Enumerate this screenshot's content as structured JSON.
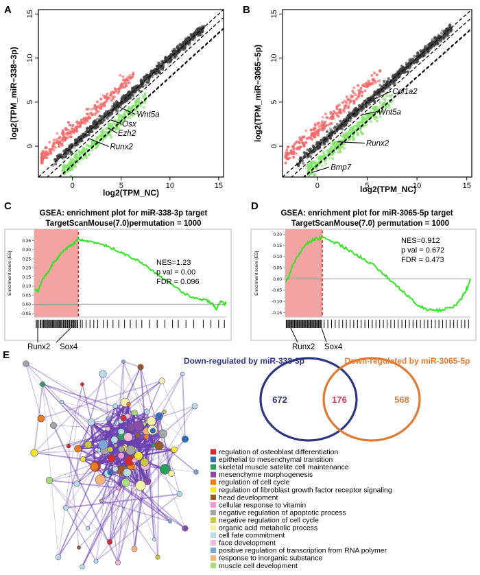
{
  "panel_labels": [
    "A",
    "B",
    "C",
    "D",
    "E"
  ],
  "chart_data": [
    {
      "type": "scatter",
      "panel": "A",
      "xlabel": "log2(TPM_NC)",
      "ylabel": "log2(TPM_miR−338−3p)",
      "xlim": [
        -3.5,
        15.5
      ],
      "ylim": [
        -3.5,
        15.5
      ],
      "xticks": [
        0,
        5,
        10,
        15
      ],
      "yticks": [
        0,
        5,
        10,
        15
      ],
      "diagonals": [
        [
          0,
          1
        ],
        [
          -0.9,
          0.9
        ]
      ],
      "point_groups": [
        {
          "name": "up",
          "color": "#f06a6a",
          "region": "above",
          "count": 260
        },
        {
          "name": "down",
          "color": "#82e66a",
          "region": "below",
          "count": 280
        },
        {
          "name": "unchanged",
          "color": "#3a3a3a",
          "region": "band",
          "count": 750
        }
      ],
      "annotations": [
        {
          "label": "Wnt5a",
          "point": [
            4.9,
            4.4
          ]
        },
        {
          "label": "Osx",
          "point": [
            3.9,
            3.0
          ]
        },
        {
          "label": "Ezh2",
          "point": [
            3.6,
            2.1
          ]
        },
        {
          "label": "Runx2",
          "point": [
            1.6,
            0.9
          ]
        }
      ]
    },
    {
      "type": "scatter",
      "panel": "B",
      "xlabel": "log2(TPM_NC)",
      "ylabel": "log2(TPM_miR−3065−5p)",
      "xlim": [
        -3.5,
        15.5
      ],
      "ylim": [
        -3.5,
        15.5
      ],
      "xticks": [
        0,
        5,
        10,
        15
      ],
      "yticks": [
        0,
        5,
        10,
        15
      ],
      "diagonals": [
        [
          0,
          1
        ],
        [
          -0.9,
          0.9
        ]
      ],
      "point_groups": [
        {
          "name": "up",
          "color": "#f06a6a",
          "region": "above",
          "count": 240
        },
        {
          "name": "down",
          "color": "#82e66a",
          "region": "below",
          "count": 300
        },
        {
          "name": "unchanged",
          "color": "#3a3a3a",
          "region": "band",
          "count": 750
        }
      ],
      "annotations": [
        {
          "label": "Col1a2",
          "point": [
            5.6,
            5.3
          ]
        },
        {
          "label": "Wnt5a",
          "point": [
            4.6,
            3.6
          ]
        },
        {
          "label": "Runx2",
          "point": [
            2.0,
            0.5
          ]
        },
        {
          "label": "Bmp7",
          "point": [
            -0.6,
            -3.0
          ]
        }
      ]
    },
    {
      "type": "line",
      "panel": "C",
      "title_lines": [
        "GSEA: enrichment plot for miR-338-3p target",
        "TargetScanMouse(7.0)permutation = 1000"
      ],
      "ylabel": "Enrichment score (ES)",
      "ylim": [
        -0.07,
        0.39
      ],
      "yticks": [
        "0.35",
        "0.30",
        "0.25",
        "0.20",
        "0.15",
        "0.10",
        "0.05",
        "0.00",
        "-0.05"
      ],
      "ytick_values": [
        0.35,
        0.3,
        0.25,
        0.2,
        0.15,
        0.1,
        0.05,
        0.0,
        -0.05
      ],
      "peak_fraction": 0.23,
      "stats": [
        "NES=1.23",
        "p val = 0.00",
        "FDR = 0.096"
      ],
      "series": [
        {
          "name": "running ES",
          "color": "#2ee61f",
          "x": [
            0,
            0.02,
            0.04,
            0.06,
            0.08,
            0.1,
            0.12,
            0.14,
            0.16,
            0.18,
            0.2,
            0.22,
            0.23,
            0.26,
            0.3,
            0.34,
            0.38,
            0.42,
            0.46,
            0.5,
            0.54,
            0.58,
            0.62,
            0.66,
            0.7,
            0.74,
            0.78,
            0.82,
            0.86,
            0.9,
            0.93,
            0.95,
            0.97,
            0.99,
            1.0
          ],
          "values": [
            0.08,
            0.07,
            0.13,
            0.16,
            0.19,
            0.23,
            0.25,
            0.28,
            0.3,
            0.32,
            0.33,
            0.35,
            0.36,
            0.35,
            0.34,
            0.33,
            0.32,
            0.3,
            0.28,
            0.26,
            0.24,
            0.21,
            0.18,
            0.15,
            0.12,
            0.09,
            0.06,
            0.04,
            0.03,
            0.02,
            0.0,
            -0.03,
            0.02,
            0.0,
            0.01
          ]
        }
      ],
      "hits": [
        0.01,
        0.015,
        0.022,
        0.03,
        0.035,
        0.041,
        0.048,
        0.052,
        0.058,
        0.063,
        0.07,
        0.074,
        0.08,
        0.085,
        0.09,
        0.095,
        0.1,
        0.104,
        0.11,
        0.115,
        0.12,
        0.126,
        0.131,
        0.136,
        0.14,
        0.146,
        0.152,
        0.157,
        0.162,
        0.168,
        0.173,
        0.178,
        0.184,
        0.19,
        0.195,
        0.2,
        0.205,
        0.21,
        0.216,
        0.222,
        0.226,
        0.24,
        0.25,
        0.27,
        0.29,
        0.31,
        0.33,
        0.36,
        0.38,
        0.41,
        0.44,
        0.47,
        0.5,
        0.53,
        0.56,
        0.6,
        0.64,
        0.68,
        0.72,
        0.75,
        0.79,
        0.83,
        0.88,
        0.92,
        0.96,
        0.99
      ],
      "gene_labels": [
        {
          "label": "Runx2",
          "x": 0.02
        },
        {
          "label": "Sox4",
          "x": 0.2
        }
      ]
    },
    {
      "type": "line",
      "panel": "D",
      "title_lines": [
        "GSEA: enrichment plot for miR-3065-5p target",
        "TargetScanMouse(7.0) permutation = 1000"
      ],
      "ylabel": "Enrichment score (ES)",
      "ylim": [
        -0.17,
        0.21
      ],
      "yticks": [
        "0.20",
        "0.15",
        "0.10",
        "0.05",
        "0.00",
        "-0.05",
        "-0.10",
        "-0.15"
      ],
      "ytick_values": [
        0.2,
        0.15,
        0.1,
        0.05,
        0.0,
        -0.05,
        -0.1,
        -0.15
      ],
      "peak_fraction": 0.2,
      "stats": [
        "NES=0.912",
        "p val = 0.672",
        "FDR = 0.473"
      ],
      "series": [
        {
          "name": "running ES",
          "color": "#2ee61f",
          "x": [
            0,
            0.02,
            0.04,
            0.06,
            0.08,
            0.1,
            0.12,
            0.14,
            0.16,
            0.18,
            0.2,
            0.24,
            0.28,
            0.32,
            0.36,
            0.4,
            0.44,
            0.48,
            0.52,
            0.56,
            0.6,
            0.64,
            0.68,
            0.72,
            0.76,
            0.8,
            0.84,
            0.88,
            0.92,
            0.95,
            0.97,
            0.99,
            1.0
          ],
          "values": [
            -0.01,
            0.01,
            0.06,
            0.09,
            0.12,
            0.14,
            0.16,
            0.17,
            0.18,
            0.18,
            0.19,
            0.17,
            0.16,
            0.14,
            0.12,
            0.1,
            0.08,
            0.06,
            0.03,
            0.0,
            -0.03,
            -0.06,
            -0.09,
            -0.12,
            -0.135,
            -0.14,
            -0.14,
            -0.13,
            -0.12,
            -0.09,
            -0.06,
            -0.03,
            0.0
          ]
        }
      ],
      "hits": [
        0.005,
        0.01,
        0.015,
        0.02,
        0.025,
        0.03,
        0.035,
        0.04,
        0.045,
        0.05,
        0.055,
        0.06,
        0.065,
        0.07,
        0.075,
        0.08,
        0.085,
        0.09,
        0.095,
        0.1,
        0.105,
        0.11,
        0.115,
        0.12,
        0.125,
        0.13,
        0.135,
        0.14,
        0.145,
        0.15,
        0.155,
        0.16,
        0.165,
        0.17,
        0.175,
        0.18,
        0.185,
        0.19,
        0.195,
        0.21,
        0.23,
        0.25,
        0.27,
        0.29,
        0.31,
        0.33,
        0.35,
        0.37,
        0.39,
        0.41,
        0.43,
        0.45,
        0.47,
        0.49,
        0.51,
        0.53,
        0.55,
        0.57,
        0.59,
        0.61,
        0.63,
        0.65,
        0.67,
        0.69,
        0.71,
        0.73,
        0.75,
        0.77,
        0.79,
        0.81,
        0.83,
        0.85,
        0.87,
        0.89,
        0.91,
        0.93,
        0.95,
        0.97,
        0.99
      ],
      "gene_labels": [
        {
          "label": "Runx2",
          "x": 0.03
        },
        {
          "label": "Sox4",
          "x": 0.19
        }
      ]
    }
  ],
  "venn": {
    "left_label": "Down-regulated by miR-338-3p",
    "right_label": "Down-regulated by miR-3065-5p",
    "left_only": "672",
    "overlap": "176",
    "right_only": "568",
    "left_color": "#2d3480",
    "right_color": "#e07a30",
    "overlap_color": "#d83a55"
  },
  "network": {
    "edge_color": "#6a3fb0",
    "legend": [
      {
        "label": "regulation of osteoblast differentiation",
        "color": "#d42b2b"
      },
      {
        "label": "epithelial to mesenchymal transition",
        "color": "#2e6fbd"
      },
      {
        "label": "skeletal muscle satelite cell maintenance",
        "color": "#2e9e5b"
      },
      {
        "label": "mesenchyme morphogenesis",
        "color": "#8b4ca8"
      },
      {
        "label": "regulation of cell cycle",
        "color": "#f07a22"
      },
      {
        "label": "regulation of fibroblast growth factor receptor signaling",
        "color": "#f2e52a"
      },
      {
        "label": "head development",
        "color": "#9a5a2a"
      },
      {
        "label": "cellular response to vitamin",
        "color": "#f29ad0"
      },
      {
        "label": "negative regulation of apoptotic process",
        "color": "#a4a4a4"
      },
      {
        "label": "negative regulation of cell cycle",
        "color": "#c9c93a"
      },
      {
        "label": "organic acid metabolic process",
        "color": "#f5f0a8"
      },
      {
        "label": "cell fate commitment",
        "color": "#b7dce8"
      },
      {
        "label": "face development",
        "color": "#f4b8d8"
      },
      {
        "label": "positive regulation of transcription from RNA polymer",
        "color": "#7aa8d8"
      },
      {
        "label": "response to inorganic substance",
        "color": "#f5b37a"
      },
      {
        "label": "muscle cell development",
        "color": "#a8dc7a"
      }
    ]
  }
}
